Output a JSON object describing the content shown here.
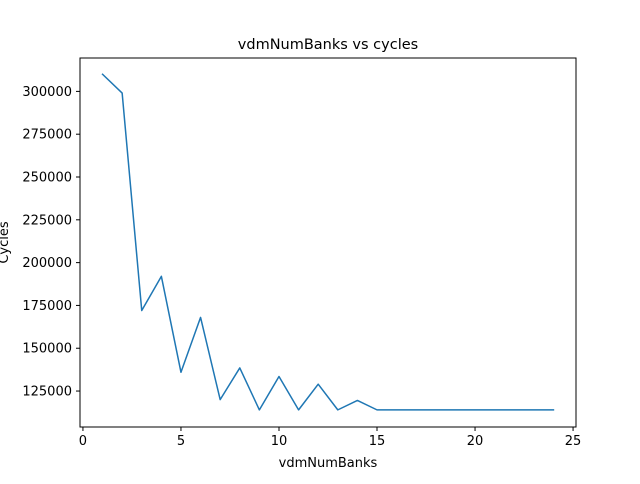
{
  "chart_data": {
    "type": "line",
    "title": "vdmNumBanks vs cycles",
    "xlabel": "vdmNumBanks",
    "ylabel": "Cycles",
    "xlim": [
      -0.15,
      25.15
    ],
    "ylim": [
      104000,
      319500
    ],
    "xticks": [
      0,
      5,
      10,
      15,
      20,
      25
    ],
    "xtick_labels": [
      "0",
      "5",
      "10",
      "15",
      "20",
      "25"
    ],
    "yticks": [
      125000,
      150000,
      175000,
      200000,
      225000,
      250000,
      275000,
      300000
    ],
    "ytick_labels": [
      "125000",
      "150000",
      "175000",
      "200000",
      "225000",
      "250000",
      "275000",
      "300000"
    ],
    "grid": false,
    "series": [
      {
        "color": "#1f77b4",
        "x": [
          1,
          2,
          3,
          4,
          5,
          6,
          7,
          8,
          9,
          10,
          11,
          12,
          13,
          14,
          15,
          16,
          17,
          18,
          19,
          20,
          21,
          22,
          23,
          24
        ],
        "y": [
          310000,
          299000,
          172000,
          192000,
          136000,
          168000,
          120000,
          138500,
          114000,
          133500,
          114000,
          129000,
          114000,
          119500,
          114000,
          114000,
          114000,
          114000,
          114000,
          114000,
          114000,
          114000,
          114000,
          114000
        ]
      }
    ]
  }
}
